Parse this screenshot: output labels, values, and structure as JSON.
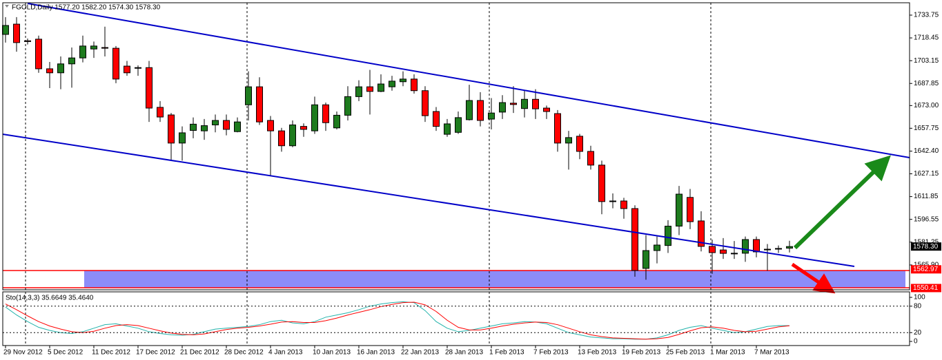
{
  "chart_data": [
    {
      "type": "candlestick",
      "title": "FGOLD,Daily  1577.20 1582.20 1574.30 1578.30",
      "categories": [
        "29 Nov 2012",
        null,
        null,
        null,
        "5 Dec 2012",
        null,
        null,
        null,
        "11 Dec 2012",
        null,
        null,
        null,
        "17 Dec 2012",
        null,
        null,
        null,
        "21 Dec 2012",
        null,
        null,
        null,
        "28 Dec 2012",
        null,
        null,
        null,
        "4 Jan 2013",
        null,
        null,
        null,
        "10 Jan 2013",
        null,
        null,
        null,
        "16 Jan 2013",
        null,
        null,
        null,
        "22 Jan 2013",
        null,
        null,
        null,
        "28 Jan 2013",
        null,
        null,
        null,
        "1 Feb 2013",
        null,
        null,
        null,
        "7 Feb 2013",
        null,
        null,
        null,
        "13 Feb 2013",
        null,
        null,
        null,
        "19 Feb 2013",
        null,
        null,
        null,
        "25 Feb 2013",
        null,
        null,
        null,
        "1 Mar 2013",
        null,
        null,
        null,
        "7 Mar 2013",
        null,
        null,
        null
      ],
      "open": [
        1720.8,
        1727.7,
        1716.5,
        1717.6,
        1697.7,
        1695,
        1701,
        1705,
        1711,
        1712,
        1711.5,
        1699.5,
        1698.5,
        1698.5,
        1671.8,
        1666.7,
        1647.8,
        1656.3,
        1656,
        1660,
        1663,
        1655.5,
        1673.5,
        1685.6,
        1663,
        1656,
        1646,
        1659,
        1656,
        1673.5,
        1658,
        1666.5,
        1679,
        1685.6,
        1682.5,
        1685.6,
        1689,
        1690.8,
        1683,
        1669,
        1653.7,
        1655,
        1663.5,
        1676.4,
        1663.9,
        1668.6,
        1674.6,
        1671,
        1677.2,
        1671.3,
        1667.6,
        1647.8,
        1652.4,
        1642.2,
        1633,
        1608.9,
        1608.9,
        1603.8,
        1563.6,
        1575.6,
        1579,
        1592,
        1611.3,
        1595.5,
        1578.4,
        1576,
        1573.8,
        1573.8,
        1583,
        1576.5,
        1576.8,
        1577.2
      ],
      "high": [
        1732.4,
        1732.4,
        1718,
        1720,
        1702.3,
        1706,
        1712,
        1720,
        1716,
        1726,
        1713,
        1703,
        1700,
        1703,
        1676,
        1668,
        1659,
        1665,
        1664,
        1667,
        1667,
        1665,
        1696,
        1692,
        1666,
        1658,
        1663,
        1661,
        1679,
        1675,
        1669,
        1686,
        1690,
        1697,
        1694,
        1693,
        1696,
        1694,
        1686,
        1672,
        1664,
        1669,
        1687,
        1682,
        1678,
        1680,
        1686,
        1683,
        1684,
        1673,
        1670,
        1656,
        1654,
        1646,
        1636,
        1614,
        1611,
        1606,
        1586,
        1585,
        1596,
        1619,
        1617,
        1602,
        1583,
        1584,
        1582,
        1585,
        1585,
        1580,
        1579,
        1582.2
      ],
      "low": [
        1715.3,
        1709.2,
        1714,
        1695,
        1684.7,
        1684,
        1685,
        1702,
        1705,
        1706,
        1688,
        1693,
        1693,
        1662,
        1662,
        1636,
        1636,
        1651,
        1650,
        1655,
        1653,
        1655,
        1663,
        1660,
        1626,
        1642,
        1645,
        1652,
        1654,
        1656,
        1657,
        1663,
        1676,
        1667,
        1682,
        1683,
        1686,
        1681,
        1662,
        1656,
        1652,
        1654,
        1663,
        1659,
        1657,
        1664,
        1668,
        1665,
        1664,
        1664,
        1642,
        1630,
        1637,
        1630,
        1600,
        1604,
        1597,
        1558,
        1556,
        1567,
        1574,
        1586,
        1590,
        1575,
        1560,
        1570,
        1570,
        1568,
        1571,
        1562,
        1574,
        1574.3
      ],
      "close": [
        1726.8,
        1715.3,
        1716,
        1697.7,
        1695,
        1701,
        1705,
        1713,
        1713,
        1711.5,
        1690.8,
        1695,
        1698.5,
        1671.3,
        1665.3,
        1647.8,
        1654.7,
        1660.5,
        1659.5,
        1663,
        1657,
        1662,
        1685.6,
        1662,
        1656,
        1646,
        1660,
        1657,
        1673.5,
        1661.5,
        1666.5,
        1679,
        1685.6,
        1682.5,
        1687.5,
        1689.4,
        1690.8,
        1683,
        1666.2,
        1659,
        1660.7,
        1664.9,
        1676.4,
        1663,
        1668,
        1675,
        1673.7,
        1677.2,
        1670.8,
        1669,
        1647.8,
        1651.5,
        1642.2,
        1633,
        1608.5,
        1608.9,
        1603.8,
        1562.2,
        1575.6,
        1579.3,
        1592,
        1613.5,
        1595,
        1578.4,
        1574.2,
        1573.7,
        1573.8,
        1583,
        1574.7,
        1576.5,
        1577,
        1578.3
      ],
      "up_color": "#1e7b1e",
      "down_color": "#ff0000",
      "ylim": [
        1549.7,
        1741.6
      ],
      "yticks": [
        1733.75,
        1718.45,
        1703.15,
        1687.85,
        {
          "value": 1673,
          "label": "1673.00"
        },
        1657.75,
        {
          "value": 1642.4,
          "label": "1642.40"
        },
        1627.15,
        1611.85,
        1596.55,
        1581.25,
        {
          "value": 1565.9,
          "label": "1565.90"
        }
      ],
      "price_labels": [
        {
          "value": 1578.3,
          "label": "1578.30",
          "color": "#000000"
        },
        {
          "value": 1562.97,
          "label": "1562.97",
          "color": "#ff0000"
        },
        {
          "value": 1550.41,
          "label": "1550.41",
          "color": "#ff0000"
        }
      ]
    },
    {
      "type": "line",
      "title": "Sto(14,3,3) 35.6649 35.4640",
      "series": [
        {
          "color": "#20b2aa",
          "values": [
            78,
            60,
            45,
            32,
            25,
            20,
            18,
            22,
            30,
            38,
            40,
            35,
            30,
            22,
            18,
            15,
            14,
            16,
            22,
            28,
            30,
            32,
            34,
            38,
            45,
            48,
            42,
            40,
            45,
            55,
            60,
            65,
            72,
            80,
            85,
            88,
            90,
            88,
            70,
            45,
            30,
            22,
            25,
            30,
            35,
            40,
            42,
            45,
            44,
            40,
            30,
            20,
            15,
            10,
            8,
            6,
            6,
            5,
            5,
            8,
            15,
            25,
            32,
            36,
            30,
            25,
            20,
            22,
            28,
            34,
            36,
            35.6649
          ]
        },
        {
          "color": "#ff0000",
          "values": [
            85,
            72,
            58,
            45,
            35,
            28,
            22,
            20,
            23,
            30,
            36,
            38,
            36,
            30,
            24,
            19,
            16,
            15,
            17,
            22,
            27,
            30,
            32,
            35,
            39,
            44,
            45,
            43,
            43,
            47,
            53,
            60,
            66,
            72,
            79,
            84,
            88,
            89,
            83,
            68,
            48,
            32,
            26,
            26,
            30,
            35,
            39,
            42,
            44,
            43,
            38,
            30,
            22,
            15,
            11,
            8,
            7,
            6,
            5,
            6,
            9,
            16,
            24,
            31,
            33,
            30,
            25,
            22,
            23,
            28,
            33,
            35.464
          ]
        }
      ],
      "ylim": [
        0,
        100
      ],
      "yticks": [
        0,
        20,
        80,
        100
      ],
      "levels": [
        20,
        80
      ]
    }
  ]
}
